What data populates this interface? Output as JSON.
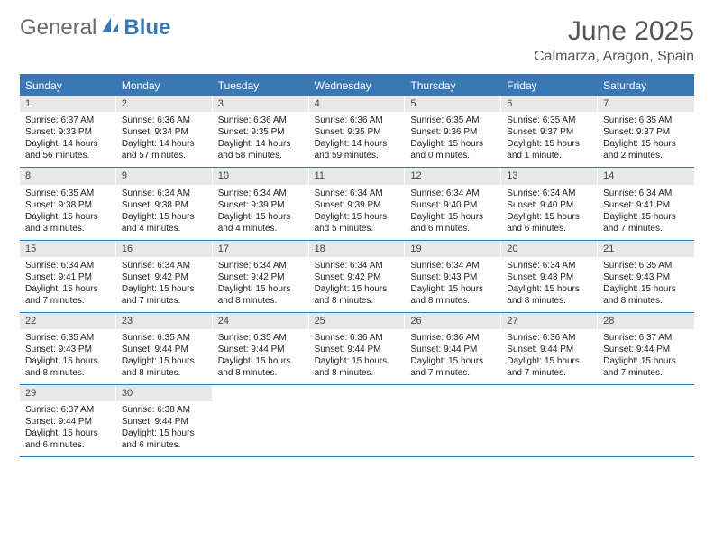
{
  "brand": {
    "part1": "General",
    "part2": "Blue"
  },
  "title": "June 2025",
  "subtitle": "Calmarza, Aragon, Spain",
  "colors": {
    "accent": "#3a78b5",
    "header_text": "#ffffff",
    "daynum_bg": "#e8e8e8",
    "text": "#333333"
  },
  "day_names": [
    "Sunday",
    "Monday",
    "Tuesday",
    "Wednesday",
    "Thursday",
    "Friday",
    "Saturday"
  ],
  "weeks": [
    [
      {
        "n": "1",
        "sr": "6:37 AM",
        "ss": "9:33 PM",
        "dl": "14 hours and 56 minutes."
      },
      {
        "n": "2",
        "sr": "6:36 AM",
        "ss": "9:34 PM",
        "dl": "14 hours and 57 minutes."
      },
      {
        "n": "3",
        "sr": "6:36 AM",
        "ss": "9:35 PM",
        "dl": "14 hours and 58 minutes."
      },
      {
        "n": "4",
        "sr": "6:36 AM",
        "ss": "9:35 PM",
        "dl": "14 hours and 59 minutes."
      },
      {
        "n": "5",
        "sr": "6:35 AM",
        "ss": "9:36 PM",
        "dl": "15 hours and 0 minutes."
      },
      {
        "n": "6",
        "sr": "6:35 AM",
        "ss": "9:37 PM",
        "dl": "15 hours and 1 minute."
      },
      {
        "n": "7",
        "sr": "6:35 AM",
        "ss": "9:37 PM",
        "dl": "15 hours and 2 minutes."
      }
    ],
    [
      {
        "n": "8",
        "sr": "6:35 AM",
        "ss": "9:38 PM",
        "dl": "15 hours and 3 minutes."
      },
      {
        "n": "9",
        "sr": "6:34 AM",
        "ss": "9:38 PM",
        "dl": "15 hours and 4 minutes."
      },
      {
        "n": "10",
        "sr": "6:34 AM",
        "ss": "9:39 PM",
        "dl": "15 hours and 4 minutes."
      },
      {
        "n": "11",
        "sr": "6:34 AM",
        "ss": "9:39 PM",
        "dl": "15 hours and 5 minutes."
      },
      {
        "n": "12",
        "sr": "6:34 AM",
        "ss": "9:40 PM",
        "dl": "15 hours and 6 minutes."
      },
      {
        "n": "13",
        "sr": "6:34 AM",
        "ss": "9:40 PM",
        "dl": "15 hours and 6 minutes."
      },
      {
        "n": "14",
        "sr": "6:34 AM",
        "ss": "9:41 PM",
        "dl": "15 hours and 7 minutes."
      }
    ],
    [
      {
        "n": "15",
        "sr": "6:34 AM",
        "ss": "9:41 PM",
        "dl": "15 hours and 7 minutes."
      },
      {
        "n": "16",
        "sr": "6:34 AM",
        "ss": "9:42 PM",
        "dl": "15 hours and 7 minutes."
      },
      {
        "n": "17",
        "sr": "6:34 AM",
        "ss": "9:42 PM",
        "dl": "15 hours and 8 minutes."
      },
      {
        "n": "18",
        "sr": "6:34 AM",
        "ss": "9:42 PM",
        "dl": "15 hours and 8 minutes."
      },
      {
        "n": "19",
        "sr": "6:34 AM",
        "ss": "9:43 PM",
        "dl": "15 hours and 8 minutes."
      },
      {
        "n": "20",
        "sr": "6:34 AM",
        "ss": "9:43 PM",
        "dl": "15 hours and 8 minutes."
      },
      {
        "n": "21",
        "sr": "6:35 AM",
        "ss": "9:43 PM",
        "dl": "15 hours and 8 minutes."
      }
    ],
    [
      {
        "n": "22",
        "sr": "6:35 AM",
        "ss": "9:43 PM",
        "dl": "15 hours and 8 minutes."
      },
      {
        "n": "23",
        "sr": "6:35 AM",
        "ss": "9:44 PM",
        "dl": "15 hours and 8 minutes."
      },
      {
        "n": "24",
        "sr": "6:35 AM",
        "ss": "9:44 PM",
        "dl": "15 hours and 8 minutes."
      },
      {
        "n": "25",
        "sr": "6:36 AM",
        "ss": "9:44 PM",
        "dl": "15 hours and 8 minutes."
      },
      {
        "n": "26",
        "sr": "6:36 AM",
        "ss": "9:44 PM",
        "dl": "15 hours and 7 minutes."
      },
      {
        "n": "27",
        "sr": "6:36 AM",
        "ss": "9:44 PM",
        "dl": "15 hours and 7 minutes."
      },
      {
        "n": "28",
        "sr": "6:37 AM",
        "ss": "9:44 PM",
        "dl": "15 hours and 7 minutes."
      }
    ],
    [
      {
        "n": "29",
        "sr": "6:37 AM",
        "ss": "9:44 PM",
        "dl": "15 hours and 6 minutes."
      },
      {
        "n": "30",
        "sr": "6:38 AM",
        "ss": "9:44 PM",
        "dl": "15 hours and 6 minutes."
      },
      null,
      null,
      null,
      null,
      null
    ]
  ],
  "labels": {
    "sunrise": "Sunrise:",
    "sunset": "Sunset:",
    "daylight": "Daylight:"
  }
}
